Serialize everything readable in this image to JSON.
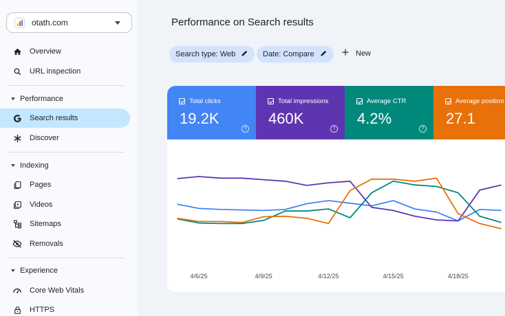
{
  "property": {
    "name": "otath.com"
  },
  "sidebar": {
    "top_items": [
      {
        "label": "Overview",
        "icon": "home-icon"
      },
      {
        "label": "URL inspection",
        "icon": "search-icon"
      }
    ],
    "sections": [
      {
        "label": "Performance",
        "items": [
          {
            "label": "Search results",
            "icon": "google-g-icon",
            "active": true
          },
          {
            "label": "Discover",
            "icon": "asterisk-icon"
          }
        ]
      },
      {
        "label": "Indexing",
        "items": [
          {
            "label": "Pages",
            "icon": "pages-icon"
          },
          {
            "label": "Videos",
            "icon": "video-icon"
          },
          {
            "label": "Sitemaps",
            "icon": "sitemap-icon"
          },
          {
            "label": "Removals",
            "icon": "eye-off-icon"
          }
        ]
      },
      {
        "label": "Experience",
        "items": [
          {
            "label": "Core Web Vitals",
            "icon": "speedometer-icon"
          },
          {
            "label": "HTTPS",
            "icon": "lock-icon"
          }
        ]
      }
    ]
  },
  "header": {
    "title": "Performance on Search results",
    "filters": [
      "Search type: Web",
      "Date: Compare"
    ],
    "new_label": "New"
  },
  "metrics": [
    {
      "label": "Total clicks",
      "value": "19.2K",
      "color": "#4285f4"
    },
    {
      "label": "Total impressions",
      "value": "460K",
      "color": "#5e35b1"
    },
    {
      "label": "Average CTR",
      "value": "4.2%",
      "color": "#00897b"
    },
    {
      "label": "Average position",
      "value": "27.1",
      "color": "#e8710a"
    }
  ],
  "chart_data": {
    "type": "line",
    "x": [
      "4/5/25",
      "4/6/25",
      "4/7/25",
      "4/8/25",
      "4/9/25",
      "4/10/25",
      "4/11/25",
      "4/12/25",
      "4/13/25",
      "4/14/25",
      "4/15/25",
      "4/16/25",
      "4/17/25",
      "4/18/25",
      "4/19/25",
      "4/20/25"
    ],
    "x_tick_labels": [
      "4/6/25",
      "4/9/25",
      "4/12/25",
      "4/15/25",
      "4/18/25"
    ],
    "series": [
      {
        "metric": "Total clicks",
        "color": "#4285f4",
        "values": [
          0.47,
          0.39,
          0.37,
          0.36,
          0.35,
          0.37,
          0.48,
          0.54,
          0.49,
          0.44,
          0.54,
          0.38,
          0.32,
          0.15,
          0.37,
          0.35
        ]
      },
      {
        "metric": "Total impressions",
        "color": "#5e35b1",
        "values": [
          0.96,
          1.0,
          0.97,
          0.97,
          0.94,
          0.91,
          0.83,
          0.88,
          0.91,
          0.41,
          0.35,
          0.24,
          0.17,
          0.15,
          0.74,
          0.84
        ]
      },
      {
        "metric": "Average CTR",
        "color": "#00897b",
        "values": [
          0.19,
          0.11,
          0.1,
          0.1,
          0.16,
          0.34,
          0.34,
          0.38,
          0.21,
          0.69,
          0.91,
          0.84,
          0.81,
          0.69,
          0.24,
          0.12
        ]
      },
      {
        "metric": "Average position",
        "color": "#e8710a",
        "values": [
          0.2,
          0.14,
          0.14,
          0.12,
          0.23,
          0.24,
          0.2,
          0.1,
          0.73,
          0.95,
          0.95,
          0.91,
          0.97,
          0.29,
          0.1,
          0.0
        ]
      }
    ],
    "legend": "none",
    "grid": false,
    "y_scale": "normalized per metric (no y-axis labels shown)"
  }
}
